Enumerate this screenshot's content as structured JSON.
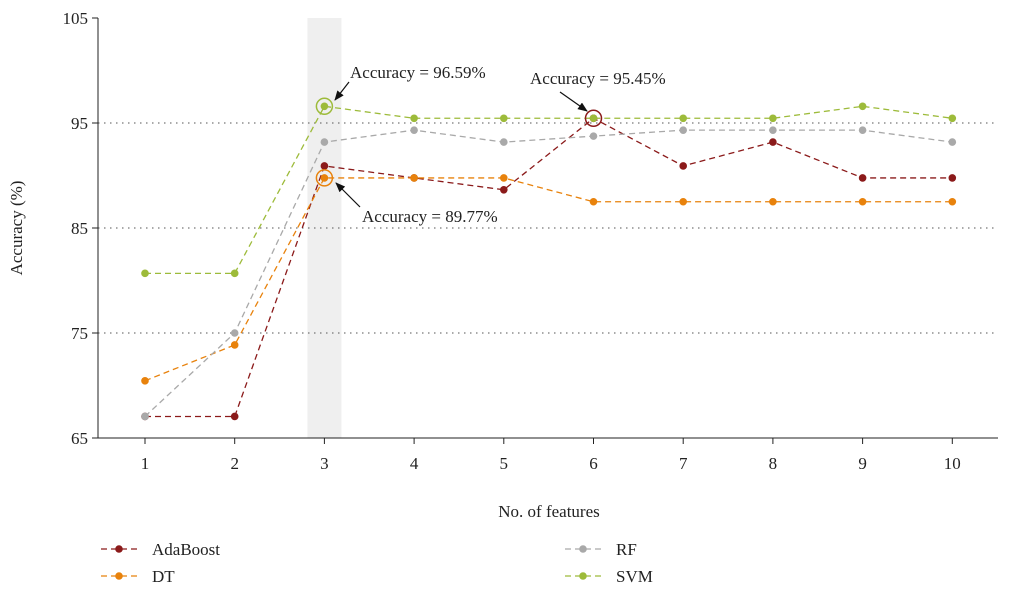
{
  "chart_data": {
    "type": "line",
    "xlabel": "No. of features",
    "ylabel": "Accuracy (%)",
    "x": [
      1,
      2,
      3,
      4,
      5,
      6,
      7,
      8,
      9,
      10
    ],
    "xticks": [
      "1",
      "2",
      "3",
      "4",
      "5",
      "6",
      "7",
      "8",
      "9",
      "10"
    ],
    "ylim": [
      65,
      105
    ],
    "yticks": [
      "65",
      "75",
      "85",
      "95",
      "105"
    ],
    "grid": "horizontal dotted",
    "highlight_x": 3,
    "series": [
      {
        "name": "AdaBoost",
        "color": "#8b1a1a",
        "values": [
          67.05,
          67.05,
          90.91,
          89.77,
          88.64,
          95.45,
          90.91,
          93.18,
          89.77,
          89.77
        ]
      },
      {
        "name": "DT",
        "color": "#e8820c",
        "values": [
          70.45,
          73.86,
          89.77,
          89.77,
          89.77,
          87.5,
          87.5,
          87.5,
          87.5,
          87.5
        ]
      },
      {
        "name": "RF",
        "color": "#a9a9a9",
        "values": [
          67.05,
          75.0,
          93.18,
          94.32,
          93.18,
          93.75,
          94.32,
          94.32,
          94.32,
          93.18
        ]
      },
      {
        "name": "SVM",
        "color": "#9dbb3a",
        "values": [
          80.68,
          80.68,
          96.59,
          95.45,
          95.45,
          95.45,
          95.45,
          95.45,
          96.59,
          95.45
        ]
      }
    ],
    "annotations": [
      {
        "text": "Accuracy = 96.59%",
        "x": 3,
        "y": 96.59,
        "series": "SVM"
      },
      {
        "text": "Accuracy = 95.45%",
        "x": 6,
        "y": 95.45,
        "series": "AdaBoost"
      },
      {
        "text": "Accuracy = 89.77%",
        "x": 3,
        "y": 89.77,
        "series": "DT"
      }
    ],
    "legend_position": "bottom"
  }
}
